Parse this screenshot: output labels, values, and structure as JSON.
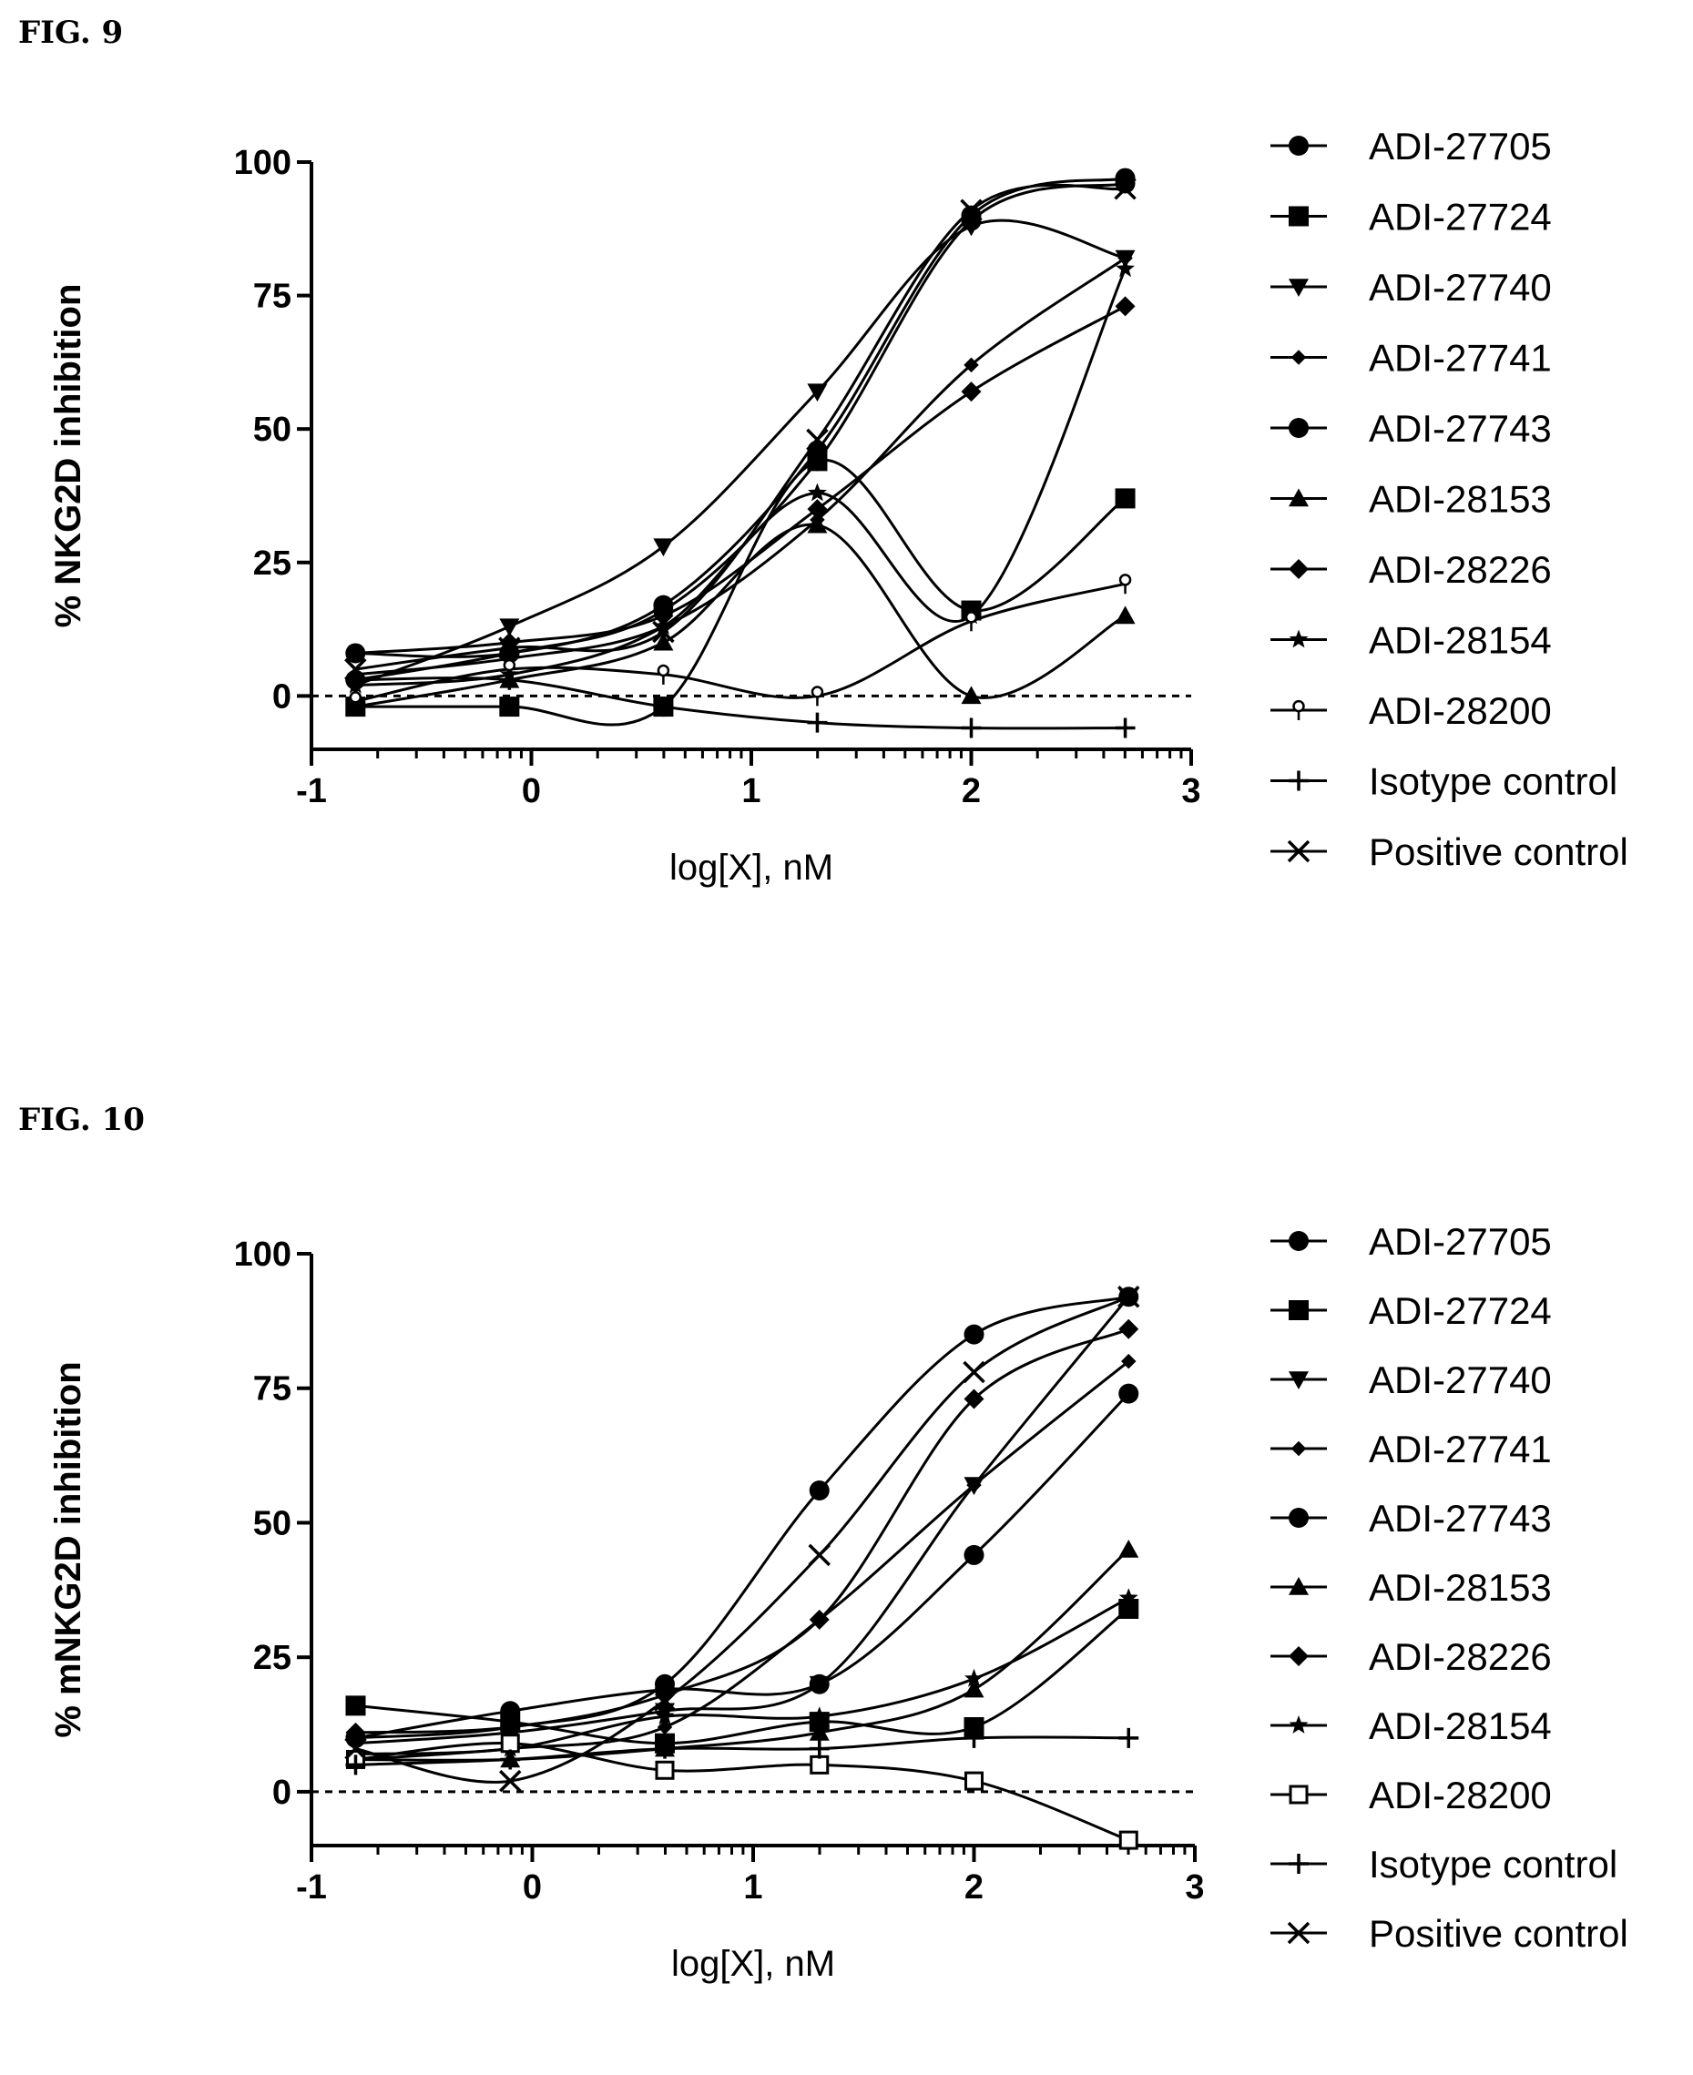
{
  "figures": [
    {
      "label": "FIG. 9",
      "chart_data": {
        "type": "scatter",
        "title": "",
        "xlabel": "log[X], nM",
        "ylabel": "% NKG2D inhibition",
        "xlim": [
          -1,
          3
        ],
        "ylim": [
          -10,
          100
        ],
        "xticks": [
          "-1",
          "0",
          "1",
          "2",
          "3"
        ],
        "yticks": [
          "0",
          "25",
          "50",
          "75",
          "100"
        ],
        "x": [
          -0.8,
          -0.1,
          0.6,
          1.3,
          2.0,
          2.7
        ],
        "reference_line_y": 0,
        "legend_position": "right",
        "series": [
          {
            "name": "ADI-27705",
            "marker": "circle",
            "values": [
              3,
              8,
              16,
              44,
              89,
              96
            ]
          },
          {
            "name": "ADI-27724",
            "marker": "square",
            "values": [
              -2,
              -2,
              -2,
              44,
              16,
              37
            ]
          },
          {
            "name": "ADI-27740",
            "marker": "triangle-down",
            "values": [
              2,
              13,
              28,
              57,
              88,
              82
            ]
          },
          {
            "name": "ADI-27741",
            "marker": "diamond-small",
            "values": [
              4,
              7,
              13,
              33,
              62,
              82
            ]
          },
          {
            "name": "ADI-27743",
            "marker": "circle",
            "values": [
              8,
              8,
              17,
              46,
              90,
              97
            ]
          },
          {
            "name": "ADI-28153",
            "marker": "triangle-up",
            "values": [
              -2,
              3,
              10,
              32,
              0,
              15
            ]
          },
          {
            "name": "ADI-28226",
            "marker": "diamond",
            "values": [
              8,
              10,
              15,
              35,
              57,
              73
            ]
          },
          {
            "name": "ADI-28154",
            "marker": "star",
            "values": [
              2,
              4,
              13,
              38,
              15,
              80
            ]
          },
          {
            "name": "ADI-28200",
            "marker": "open-pin",
            "values": [
              -1,
              5,
              4,
              0,
              14,
              21
            ]
          },
          {
            "name": "Isotype control",
            "marker": "plus",
            "values": [
              3,
              3,
              -2,
              -5,
              -6,
              -6
            ]
          },
          {
            "name": "Positive control",
            "marker": "x",
            "values": [
              5,
              9,
              12,
              48,
              91,
              95
            ]
          }
        ]
      }
    },
    {
      "label": "FIG. 10",
      "chart_data": {
        "type": "scatter",
        "title": "",
        "xlabel": "log[X], nM",
        "ylabel": "% mNKG2D inhibition",
        "xlim": [
          -1,
          3
        ],
        "ylim": [
          -10,
          100
        ],
        "xticks": [
          "-1",
          "0",
          "1",
          "2",
          "3"
        ],
        "yticks": [
          "0",
          "25",
          "50",
          "75",
          "100"
        ],
        "x": [
          -0.8,
          -0.1,
          0.6,
          1.3,
          2.0,
          2.7
        ],
        "reference_line_y": 0,
        "legend_position": "right",
        "series": [
          {
            "name": "ADI-27705",
            "marker": "circle",
            "values": [
              10,
              12,
              20,
              56,
              85,
              92
            ]
          },
          {
            "name": "ADI-27724",
            "marker": "square",
            "values": [
              16,
              13,
              9,
              13,
              12,
              34
            ]
          },
          {
            "name": "ADI-27740",
            "marker": "triangle-down",
            "values": [
              9,
              11,
              15,
              20,
              57,
              92
            ]
          },
          {
            "name": "ADI-27741",
            "marker": "diamond-small",
            "values": [
              6,
              8,
              12,
              32,
              57,
              80
            ]
          },
          {
            "name": "ADI-27743",
            "marker": "circle",
            "values": [
              10,
              15,
              19,
              20,
              44,
              74
            ]
          },
          {
            "name": "ADI-28153",
            "marker": "triangle-up",
            "values": [
              6,
              6,
              8,
              11,
              19,
              45
            ]
          },
          {
            "name": "ADI-28226",
            "marker": "diamond",
            "values": [
              11,
              12,
              18,
              32,
              73,
              86
            ]
          },
          {
            "name": "ADI-28154",
            "marker": "star",
            "values": [
              7,
              8,
              14,
              14,
              21,
              36
            ]
          },
          {
            "name": "ADI-28200",
            "marker": "open-square",
            "values": [
              6,
              9,
              4,
              5,
              2,
              -9
            ]
          },
          {
            "name": "Isotype control",
            "marker": "plus",
            "values": [
              5,
              6,
              8,
              8,
              10,
              10
            ]
          },
          {
            "name": "Positive control",
            "marker": "x",
            "values": [
              8,
              2,
              17,
              44,
              78,
              92
            ]
          }
        ]
      }
    }
  ]
}
